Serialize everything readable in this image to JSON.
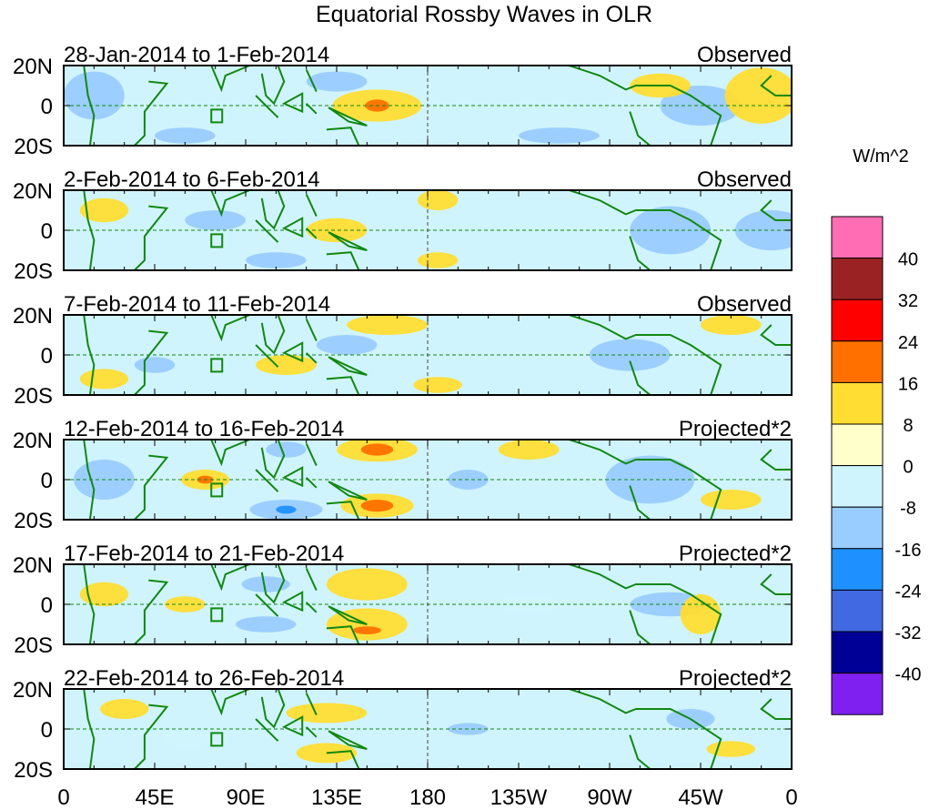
{
  "chart_data": {
    "type": "heatmap",
    "title": "Equatorial Rossby Waves in OLR",
    "units_label": "W/m^2",
    "x_ticks": [
      {
        "lon": 0,
        "label": "0"
      },
      {
        "lon": 45,
        "label": "45E"
      },
      {
        "lon": 90,
        "label": "90E"
      },
      {
        "lon": 135,
        "label": "135E"
      },
      {
        "lon": 180,
        "label": "180"
      },
      {
        "lon": 225,
        "label": "135W"
      },
      {
        "lon": 270,
        "label": "90W"
      },
      {
        "lon": 315,
        "label": "45W"
      },
      {
        "lon": 360,
        "label": "0"
      }
    ],
    "y_ticks": [
      {
        "lat": 20,
        "label": "20N"
      },
      {
        "lat": 0,
        "label": "0"
      },
      {
        "lat": -20,
        "label": "20S"
      }
    ],
    "xlim": [
      0,
      360
    ],
    "ylim": [
      -20,
      20
    ],
    "colorbar": {
      "levels": [
        40,
        32,
        24,
        16,
        8,
        0,
        -8,
        -16,
        -24,
        -32,
        -40
      ],
      "colors": [
        "#ff6eb4",
        "#9b2222",
        "#ff0000",
        "#ff7000",
        "#ffdd33",
        "#ffffcc",
        "#d0f4fd",
        "#99ccff",
        "#1e90ff",
        "#4169e1",
        "#000096",
        "#8020f0"
      ]
    },
    "panels": [
      {
        "dates": "28-Jan-2014 to 1-Feb-2014",
        "type": "Observed",
        "anomalies": [
          [
            15,
            5,
            15,
            12,
            -10
          ],
          [
            155,
            0,
            22,
            8,
            10
          ],
          [
            155,
            0,
            6,
            3,
            22
          ],
          [
            315,
            0,
            20,
            10,
            -10
          ],
          [
            345,
            5,
            18,
            14,
            10
          ],
          [
            135,
            12,
            15,
            5,
            -10
          ],
          [
            295,
            10,
            15,
            6,
            10
          ],
          [
            60,
            -15,
            15,
            4,
            -10
          ],
          [
            245,
            -15,
            20,
            4,
            -10
          ]
        ]
      },
      {
        "dates": "2-Feb-2014 to 6-Feb-2014",
        "type": "Observed",
        "anomalies": [
          [
            135,
            0,
            15,
            6,
            10
          ],
          [
            185,
            15,
            10,
            5,
            10
          ],
          [
            300,
            0,
            20,
            12,
            -10
          ],
          [
            350,
            0,
            18,
            10,
            -10
          ],
          [
            20,
            10,
            12,
            6,
            10
          ],
          [
            105,
            -15,
            15,
            4,
            -10
          ],
          [
            185,
            -15,
            10,
            4,
            10
          ],
          [
            75,
            5,
            15,
            5,
            -10
          ]
        ]
      },
      {
        "dates": "7-Feb-2014 to 11-Feb-2014",
        "type": "Observed",
        "anomalies": [
          [
            160,
            15,
            20,
            5,
            10
          ],
          [
            110,
            -5,
            15,
            5,
            10
          ],
          [
            45,
            -5,
            10,
            4,
            -10
          ],
          [
            280,
            0,
            20,
            8,
            -10
          ],
          [
            185,
            -15,
            12,
            4,
            10
          ],
          [
            330,
            15,
            15,
            5,
            10
          ],
          [
            140,
            5,
            15,
            5,
            -10
          ],
          [
            20,
            -12,
            12,
            5,
            10
          ]
        ]
      },
      {
        "dates": "12-Feb-2014 to 16-Feb-2014",
        "type": "Projected*2",
        "anomalies": [
          [
            155,
            15,
            20,
            6,
            12
          ],
          [
            155,
            15,
            8,
            3,
            20
          ],
          [
            155,
            -13,
            18,
            6,
            12
          ],
          [
            155,
            -13,
            8,
            3,
            20
          ],
          [
            70,
            0,
            12,
            5,
            12
          ],
          [
            70,
            0,
            4,
            2,
            20
          ],
          [
            110,
            -15,
            18,
            5,
            -12
          ],
          [
            110,
            -15,
            5,
            2,
            -18
          ],
          [
            110,
            15,
            10,
            4,
            -10
          ],
          [
            290,
            0,
            22,
            12,
            -10
          ],
          [
            330,
            -10,
            15,
            5,
            10
          ],
          [
            230,
            15,
            15,
            5,
            10
          ],
          [
            20,
            0,
            15,
            10,
            -10
          ],
          [
            200,
            0,
            10,
            5,
            -10
          ]
        ]
      },
      {
        "dates": "17-Feb-2014 to 21-Feb-2014",
        "type": "Projected*2",
        "anomalies": [
          [
            150,
            10,
            20,
            8,
            12
          ],
          [
            150,
            -10,
            20,
            8,
            12
          ],
          [
            150,
            -13,
            7,
            2,
            20
          ],
          [
            60,
            0,
            10,
            4,
            10
          ],
          [
            100,
            -10,
            15,
            4,
            -10
          ],
          [
            100,
            10,
            12,
            4,
            -10
          ],
          [
            300,
            0,
            20,
            6,
            -10
          ],
          [
            315,
            -5,
            10,
            10,
            10
          ],
          [
            20,
            5,
            12,
            6,
            10
          ],
          [
            230,
            0,
            15,
            5,
            -8
          ]
        ]
      },
      {
        "dates": "22-Feb-2014 to 26-Feb-2014",
        "type": "Projected*2",
        "anomalies": [
          [
            130,
            8,
            20,
            5,
            10
          ],
          [
            130,
            -12,
            15,
            5,
            10
          ],
          [
            200,
            0,
            10,
            3,
            -10
          ],
          [
            310,
            5,
            12,
            5,
            -10
          ],
          [
            330,
            -10,
            12,
            4,
            10
          ],
          [
            60,
            -5,
            12,
            4,
            -8
          ],
          [
            30,
            10,
            12,
            5,
            10
          ]
        ]
      }
    ]
  }
}
